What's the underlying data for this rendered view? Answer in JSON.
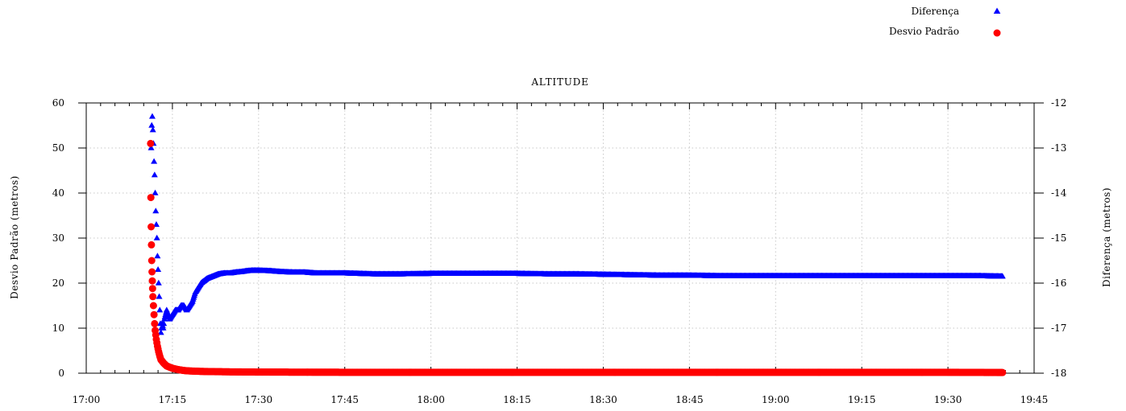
{
  "chart_data": {
    "type": "scatter",
    "title": "ALTITUDE",
    "xlabel": "",
    "ylabel_left": "Desvio Padrão (metros)",
    "ylabel_right": "Diferença (metros)",
    "x_ticks": [
      "17:00",
      "17:15",
      "17:30",
      "17:45",
      "18:00",
      "18:15",
      "18:30",
      "18:45",
      "19:00",
      "19:15",
      "19:30",
      "19:45"
    ],
    "xlim_minutes": [
      0,
      165
    ],
    "ylim_left": [
      0,
      60
    ],
    "ylim_right": [
      -18,
      -12
    ],
    "y_ticks_left": [
      0,
      10,
      20,
      30,
      40,
      50,
      60
    ],
    "y_ticks_right": [
      -18,
      -17,
      -16,
      -15,
      -14,
      -13,
      -12
    ],
    "grid": true,
    "legend_position": "top-right",
    "series": [
      {
        "name": "Diferença",
        "axis": "right",
        "marker": "triangle",
        "color": "#0000ff",
        "x_minutes": [
          11.3,
          11.4,
          11.5,
          11.6,
          11.7,
          11.8,
          11.9,
          12.0,
          12.1,
          12.2,
          12.3,
          12.4,
          12.5,
          12.6,
          12.7,
          12.8,
          12.9,
          13.0,
          13.2,
          13.4,
          13.6,
          13.8,
          14.0,
          14.5,
          15.0,
          15.5,
          16.0,
          16.5,
          17.0,
          17.5,
          18.0,
          18.5,
          19.0,
          19.5,
          20,
          21,
          22,
          23,
          24,
          25,
          26,
          27,
          28,
          29,
          30,
          32,
          34,
          36,
          38,
          40,
          45,
          50,
          55,
          60,
          65,
          70,
          75,
          80,
          85,
          90,
          95,
          100,
          105,
          110,
          115,
          120,
          125,
          130,
          135,
          140,
          145,
          150,
          155,
          159.5
        ],
        "values": [
          -13.0,
          -12.5,
          -12.3,
          -12.6,
          -12.9,
          -13.3,
          -13.6,
          -14.0,
          -14.4,
          -14.7,
          -15.0,
          -15.4,
          -15.7,
          -16.0,
          -16.3,
          -16.6,
          -16.9,
          -17.1,
          -16.9,
          -17.0,
          -16.8,
          -16.7,
          -16.6,
          -16.8,
          -16.7,
          -16.6,
          -16.6,
          -16.5,
          -16.5,
          -16.6,
          -16.5,
          -16.4,
          -16.2,
          -16.1,
          -16.0,
          -15.9,
          -15.85,
          -15.8,
          -15.78,
          -15.78,
          -15.76,
          -15.75,
          -15.73,
          -15.72,
          -15.72,
          -15.73,
          -15.75,
          -15.76,
          -15.76,
          -15.78,
          -15.78,
          -15.8,
          -15.8,
          -15.79,
          -15.79,
          -15.79,
          -15.79,
          -15.8,
          -15.8,
          -15.81,
          -15.82,
          -15.83,
          -15.83,
          -15.84,
          -15.84,
          -15.84,
          -15.84,
          -15.84,
          -15.84,
          -15.84,
          -15.84,
          -15.84,
          -15.84,
          -15.85
        ]
      },
      {
        "name": "Desvio Padrão",
        "axis": "left",
        "marker": "circle",
        "color": "#ff0000",
        "x_minutes": [
          11.2,
          11.25,
          11.3,
          11.35,
          11.4,
          11.45,
          11.5,
          11.55,
          11.6,
          11.7,
          11.8,
          11.9,
          12.0,
          12.2,
          12.4,
          12.6,
          12.8,
          13.0,
          13.5,
          14.0,
          15.0,
          16.0,
          17.0,
          18.0,
          20,
          22,
          25,
          30,
          40,
          50,
          60,
          70,
          80,
          90,
          100,
          110,
          120,
          130,
          140,
          150,
          159.5
        ],
        "values": [
          51,
          39,
          32.5,
          28.5,
          25,
          22.5,
          20.5,
          18.8,
          17.0,
          15.0,
          13.0,
          11.0,
          9.5,
          7.5,
          6.0,
          4.8,
          3.8,
          3.0,
          2.2,
          1.6,
          1.1,
          0.8,
          0.6,
          0.5,
          0.4,
          0.35,
          0.3,
          0.25,
          0.22,
          0.2,
          0.2,
          0.2,
          0.2,
          0.2,
          0.2,
          0.2,
          0.2,
          0.2,
          0.2,
          0.2,
          0.15
        ]
      }
    ]
  }
}
